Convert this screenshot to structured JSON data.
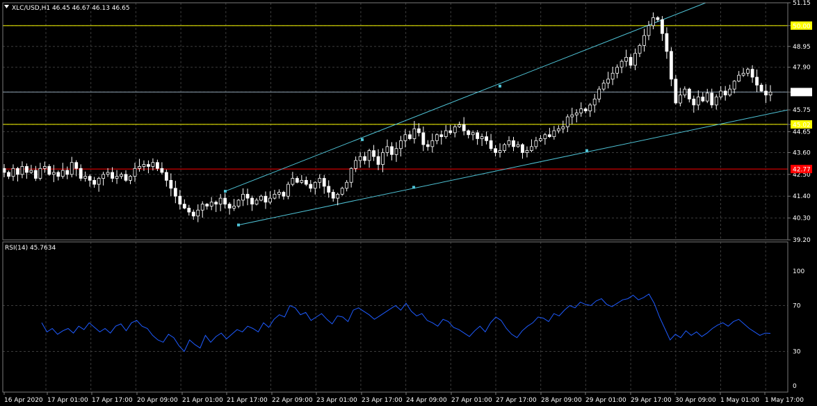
{
  "main_chart": {
    "title": "XLC/USD,H1  46.45 46.67 46.13 46.65",
    "price_labels": [
      "51.15",
      "50.00",
      "48.95",
      "47.90",
      "46.65",
      "45.75",
      "45.02",
      "44.65",
      "43.60",
      "42.50",
      "41.40",
      "40.30",
      "39.20"
    ],
    "levels": [
      {
        "value": 50.0,
        "label": "50.00",
        "color": "#ffff00",
        "label_bg": "#ffff00",
        "label_fg": "#000000"
      },
      {
        "value": 46.65,
        "label": "46.65",
        "color": "#8fa3b3",
        "label_bg": "#ffffff",
        "label_fg": "#000000"
      },
      {
        "value": 45.02,
        "label": "45.02",
        "color": "#ffff00",
        "label_bg": "#ffff00",
        "label_fg": "#000000"
      },
      {
        "value": 42.77,
        "label": "42.77",
        "color": "#ff0000",
        "label_bg": "#ff0000",
        "label_fg": "#000000"
      }
    ]
  },
  "rsi_panel": {
    "title": "RSI(14) 45.7634",
    "scale_labels": [
      "100",
      "70",
      "30",
      "0"
    ]
  },
  "time_axis": {
    "labels": [
      "16 Apr 2020",
      "17 Apr 01:00",
      "17 Apr 17:00",
      "20 Apr 09:00",
      "21 Apr 01:00",
      "21 Apr 17:00",
      "22 Apr 09:00",
      "23 Apr 01:00",
      "23 Apr 17:00",
      "24 Apr 09:00",
      "27 Apr 01:00",
      "27 Apr 17:00",
      "28 Apr 09:00",
      "29 Apr 01:00",
      "29 Apr 17:00",
      "30 Apr 09:00",
      "1 May 01:00",
      "1 May 17:00"
    ]
  },
  "colors": {
    "background": "#000000",
    "grid": "#3c3c3c",
    "bull": "#ffffff",
    "bear": "#ffffff",
    "trendline": "#4fc3d6",
    "rsi_line": "#1e5bff"
  },
  "chart_data": {
    "type": "candlestick",
    "symbol": "XLC/USD",
    "timeframe": "H1",
    "ylim": [
      39.2,
      51.15
    ],
    "ohlc_summary": {
      "open": 46.45,
      "high": 46.67,
      "low": 46.13,
      "close": 46.65
    },
    "horizontal_levels": [
      50.0,
      46.65,
      45.02,
      42.77
    ],
    "close_series": [
      42.6,
      42.4,
      42.8,
      42.5,
      42.9,
      42.6,
      42.7,
      42.3,
      42.8,
      42.9,
      42.5,
      42.6,
      42.4,
      42.7,
      42.5,
      43.1,
      42.8,
      42.3,
      42.4,
      42.2,
      42.0,
      42.3,
      42.5,
      42.6,
      42.3,
      42.4,
      42.5,
      42.2,
      42.4,
      42.8,
      42.9,
      43.0,
      42.9,
      43.1,
      42.8,
      42.6,
      42.2,
      41.8,
      41.4,
      41.0,
      40.8,
      40.6,
      40.4,
      40.7,
      41.0,
      40.9,
      41.1,
      41.0,
      41.3,
      41.0,
      40.8,
      40.9,
      41.2,
      41.5,
      41.3,
      41.0,
      41.2,
      41.4,
      41.1,
      41.3,
      41.5,
      41.6,
      41.4,
      42.0,
      42.3,
      42.1,
      42.2,
      42.0,
      41.8,
      42.1,
      42.3,
      41.9,
      41.6,
      41.3,
      41.5,
      41.8,
      42.1,
      42.8,
      43.2,
      43.4,
      43.2,
      43.7,
      43.4,
      43.0,
      43.6,
      43.9,
      43.5,
      43.8,
      44.2,
      44.5,
      44.3,
      44.8,
      44.6,
      44.0,
      43.9,
      44.2,
      44.5,
      44.4,
      44.7,
      44.6,
      44.9,
      45.0,
      44.7,
      44.5,
      44.6,
      44.3,
      44.4,
      44.2,
      43.8,
      43.6,
      43.7,
      44.0,
      44.2,
      43.9,
      44.0,
      43.6,
      43.7,
      43.9,
      44.2,
      44.3,
      44.5,
      44.4,
      44.7,
      44.8,
      44.9,
      45.4,
      45.5,
      45.6,
      45.8,
      45.7,
      46.0,
      46.3,
      46.8,
      47.1,
      47.3,
      47.6,
      47.9,
      48.2,
      48.4,
      48.0,
      48.6,
      49.0,
      49.5,
      50.0,
      50.4,
      50.3,
      49.6,
      48.7,
      47.3,
      46.1,
      46.5,
      46.8,
      46.3,
      46.0,
      46.4,
      46.2,
      46.6,
      46.0,
      46.4,
      46.7,
      46.5,
      46.8,
      47.2,
      47.5,
      47.6,
      47.8,
      47.4,
      47.0,
      46.7,
      46.5,
      46.65
    ],
    "trendlines": [
      {
        "name": "upper channel",
        "points": [
          [
            41.65,
            "21 Apr 17:00"
          ],
          [
            51.15,
            "30 Apr 09:00"
          ]
        ]
      },
      {
        "name": "lower channel",
        "points": [
          [
            39.95,
            "21 Apr 17:00"
          ],
          [
            45.75,
            "1 May 17:00"
          ]
        ]
      }
    ],
    "rsi": {
      "period": 14,
      "last": 45.7634,
      "ylim": [
        0,
        100
      ],
      "levels": [
        70,
        30
      ],
      "values": [
        55,
        47,
        50,
        45,
        48,
        50,
        46,
        52,
        49,
        55,
        51,
        47,
        50,
        46,
        52,
        54,
        48,
        55,
        57,
        52,
        50,
        44,
        40,
        38,
        45,
        42,
        35,
        30,
        40,
        36,
        33,
        44,
        38,
        43,
        46,
        41,
        45,
        49,
        47,
        52,
        50,
        47,
        55,
        51,
        58,
        62,
        60,
        70,
        68,
        62,
        64,
        57,
        60,
        63,
        58,
        54,
        61,
        60,
        56,
        66,
        68,
        65,
        62,
        58,
        61,
        64,
        67,
        70,
        66,
        72,
        65,
        61,
        63,
        57,
        55,
        52,
        58,
        56,
        51,
        49,
        46,
        43,
        48,
        52,
        47,
        55,
        60,
        57,
        50,
        45,
        42,
        48,
        52,
        55,
        60,
        59,
        56,
        63,
        61,
        66,
        70,
        68,
        73,
        71,
        70,
        74,
        76,
        71,
        69,
        72,
        75,
        76,
        79,
        75,
        77,
        80,
        72,
        60,
        50,
        40,
        45,
        42,
        48,
        44,
        47,
        43,
        46,
        50,
        53,
        55,
        52,
        56,
        58,
        54,
        50,
        47,
        44,
        46,
        45.7634
      ]
    }
  }
}
